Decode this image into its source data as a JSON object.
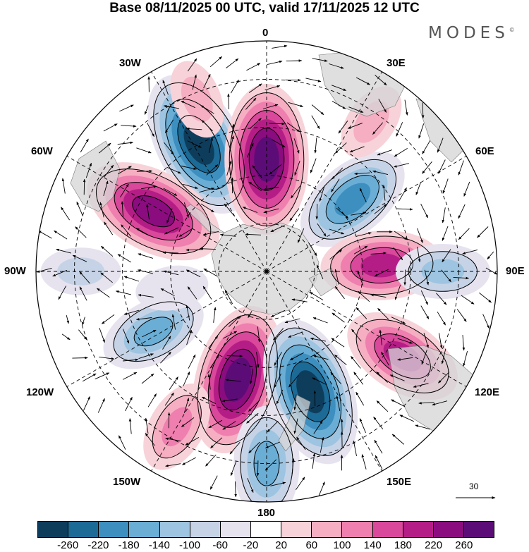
{
  "title": "Base 08/11/2025 00 UTC, valid 17/11/2025 12 UTC",
  "brand": "MODES",
  "brand_mark": "©",
  "longitude_labels": {
    "top": "0",
    "bottom": "180",
    "left": "90W",
    "right": "90E",
    "upper_left": "30W",
    "upper_right": "30E",
    "left_upper": "60W",
    "right_upper": "60E",
    "left_lower": "120W",
    "right_lower": "120E",
    "lower_left": "150W",
    "lower_right": "150E"
  },
  "vector_scale": {
    "label": "30"
  },
  "colorbar": {
    "colors": [
      "#0e3d5c",
      "#1c6a96",
      "#3d8fbf",
      "#6aaed6",
      "#9dc4e0",
      "#c6d3e7",
      "#e6e3ef",
      "#ffffff",
      "#f7d3d9",
      "#f5aec2",
      "#ef7fae",
      "#d9489b",
      "#b51d86",
      "#8a0c7e",
      "#5c0c76"
    ],
    "labels": [
      "-260",
      "-220",
      "-180",
      "-140",
      "-100",
      "-60",
      "-20",
      "20",
      "60",
      "100",
      "140",
      "180",
      "220",
      "260"
    ]
  },
  "anomaly_centers": [
    {
      "name": "anomaly-negative-30w",
      "value": -260,
      "lon": -28,
      "colat": 45
    },
    {
      "name": "anomaly-positive-0",
      "value": 260,
      "lon": 0,
      "colat": 35
    },
    {
      "name": "anomaly-negative-45e",
      "value": -180,
      "lon": 50,
      "colat": 35
    },
    {
      "name": "anomaly-positive-60w",
      "value": 240,
      "lon": -62,
      "colat": 40
    },
    {
      "name": "anomaly-positive-85e",
      "value": 180,
      "lon": 87,
      "colat": 36
    },
    {
      "name": "anomaly-negative-90e-edge",
      "value": -100,
      "lon": 90,
      "colat": 55
    },
    {
      "name": "anomaly-negative-120w",
      "value": -140,
      "lon": -118,
      "colat": 40
    },
    {
      "name": "anomaly-positive-165w",
      "value": 260,
      "lon": -165,
      "colat": 35
    },
    {
      "name": "anomaly-negative-160e",
      "value": -260,
      "lon": 160,
      "colat": 40
    },
    {
      "name": "anomaly-positive-125e",
      "value": 180,
      "lon": 122,
      "colat": 50
    },
    {
      "name": "anomaly-negative-180",
      "value": -160,
      "lon": 180,
      "colat": 60
    },
    {
      "name": "anomaly-positive-150w",
      "value": 100,
      "lon": -150,
      "colat": 56
    },
    {
      "name": "anomaly-negative-90w-edge",
      "value": -60,
      "lon": -90,
      "colat": 58
    },
    {
      "name": "anomaly-positive-30e-edge",
      "value": 60,
      "lon": 35,
      "colat": 57
    },
    {
      "name": "anomaly-negative-100w",
      "value": -40,
      "lon": -100,
      "colat": 30
    },
    {
      "name": "anomaly-positive-20w-edge",
      "value": 60,
      "lon": -22,
      "colat": 58
    }
  ]
}
